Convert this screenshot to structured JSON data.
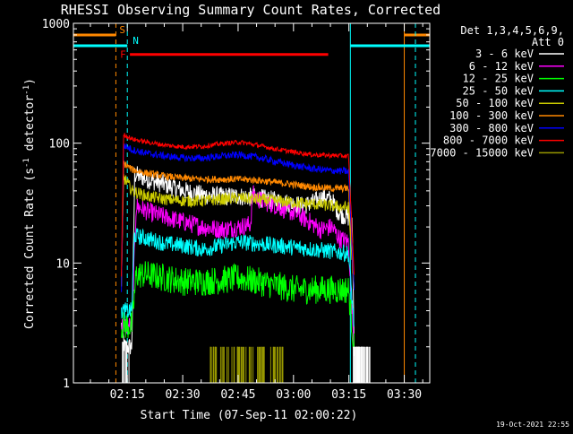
{
  "chart_data": {
    "type": "line",
    "title": "RHESSI Observing Summary Count Rates, Corrected",
    "xlabel": "Start Time (07-Sep-11 02:00:22)",
    "ylabel": "Corrected Count Rate (s⁻¹ detector⁻¹)",
    "ylabel_main": "Corrected Count Rate (s",
    "ylabel_sup1": "-1",
    "ylabel_mid": " detector",
    "ylabel_sup2": "-1",
    "ylabel_end": ")",
    "yscale": "log",
    "ylim": [
      1,
      1000
    ],
    "xlim": [
      0,
      96.5
    ],
    "xunit": "minutes after 02:00:22",
    "x_ticks": [
      {
        "label": "02:15",
        "value": 14.6
      },
      {
        "label": "02:30",
        "value": 29.6
      },
      {
        "label": "02:45",
        "value": 44.6
      },
      {
        "label": "03:00",
        "value": 59.6
      },
      {
        "label": "03:15",
        "value": 74.6
      },
      {
        "label": "03:30",
        "value": 89.6
      }
    ],
    "y_ticks": [
      {
        "label": "1000",
        "value": 1000
      },
      {
        "label": "100",
        "value": 100
      },
      {
        "label": "10",
        "value": 10
      },
      {
        "label": "1",
        "value": 1
      }
    ],
    "legend_header_1": "Det 1,3,4,5,6,9,",
    "legend_header_2": "Att 0",
    "legend_position": "right",
    "data_window": [
      13.0,
      76.0
    ],
    "series": [
      {
        "name": "3 - 6 keV",
        "color": "#ffffff",
        "x": [
          13.0,
          13.8,
          14.3,
          15.8,
          16.6,
          20,
          25,
          30,
          35,
          40,
          45,
          50,
          55,
          60,
          62,
          65,
          68,
          70,
          72,
          74.5,
          75.5,
          76.0
        ],
        "y": [
          3,
          2,
          2,
          2,
          55,
          50,
          45,
          40,
          37,
          36,
          36,
          35,
          33,
          31,
          30,
          32,
          36,
          33,
          26,
          24,
          23,
          2
        ]
      },
      {
        "name": "6 - 12 keV",
        "color": "#ff00ff",
        "x": [
          13.0,
          15.8,
          17,
          20,
          25,
          30,
          35,
          40,
          45,
          48,
          48.5,
          50,
          55,
          60,
          62,
          64,
          66,
          67,
          70,
          72,
          74.5,
          76.0
        ],
        "y": [
          3,
          3,
          30,
          27,
          24,
          22,
          20,
          19,
          20,
          21,
          38,
          34,
          30,
          26,
          24,
          22,
          20,
          19,
          20,
          16,
          15,
          2
        ]
      },
      {
        "name": "12 - 25 keV",
        "color": "#00ff00",
        "x": [
          13.0,
          15.8,
          17,
          20,
          25,
          30,
          35,
          40,
          45,
          50,
          55,
          60,
          65,
          70,
          74.5,
          76.0
        ],
        "y": [
          3,
          3,
          8,
          8,
          7.5,
          7,
          7,
          7.2,
          7.5,
          7,
          6.5,
          6,
          6,
          6,
          6,
          2
        ]
      },
      {
        "name": "25 - 50 keV",
        "color": "#00ffff",
        "x": [
          13.0,
          15.8,
          16.5,
          20,
          25,
          30,
          35,
          40,
          45,
          50,
          55,
          60,
          65,
          70,
          74.5,
          76.0
        ],
        "y": [
          4,
          4,
          17,
          16,
          14.5,
          14,
          13,
          14,
          15,
          14.5,
          14,
          13.5,
          13,
          12.5,
          12,
          3
        ]
      },
      {
        "name": "50 - 100 keV",
        "color": "#cccc00",
        "x": [
          13.0,
          13.6,
          16,
          20,
          25,
          30,
          35,
          40,
          45,
          50,
          55,
          60,
          65,
          70,
          74.5,
          76.0
        ],
        "y": [
          6,
          52,
          40,
          36,
          34,
          33,
          33,
          34,
          35,
          34,
          33,
          32,
          31,
          30,
          29,
          6
        ]
      },
      {
        "name": "100 - 300 keV",
        "color": "#ff8800",
        "x": [
          13.0,
          13.6,
          16,
          20,
          25,
          30,
          35,
          40,
          45,
          50,
          55,
          60,
          65,
          70,
          74.5,
          76.0
        ],
        "y": [
          6,
          68,
          60,
          56,
          53,
          51,
          50,
          50,
          50,
          49,
          47,
          45,
          43,
          42,
          42,
          6
        ]
      },
      {
        "name": "300 - 800 keV",
        "color": "#0000ff",
        "x": [
          13.0,
          13.6,
          16,
          20,
          25,
          30,
          35,
          40,
          45,
          50,
          55,
          60,
          65,
          70,
          74.5,
          76.0
        ],
        "y": [
          6,
          96,
          88,
          82,
          78,
          75,
          75,
          78,
          80,
          76,
          70,
          65,
          61,
          59,
          58,
          6
        ]
      },
      {
        "name": "800 - 7000 keV",
        "color": "#ff0000",
        "x": [
          13.0,
          13.6,
          16,
          20,
          25,
          30,
          35,
          40,
          45,
          50,
          55,
          60,
          65,
          70,
          74.5,
          76.0
        ],
        "y": [
          8,
          118,
          108,
          102,
          96,
          93,
          94,
          99,
          102,
          96,
          89,
          84,
          80,
          79,
          78,
          8
        ]
      },
      {
        "name": "7000 - 15000 keV",
        "color": "#999900",
        "x": [],
        "y": []
      }
    ],
    "flags": {
      "saa_label": "S",
      "night_label": "N",
      "flare_label": "F",
      "saa_color": "#ff8800",
      "night_color": "#00ffff",
      "flare_color": "#ff0000",
      "saa_segments": [
        [
          0,
          11.5
        ],
        [
          89.6,
          96.5
        ]
      ],
      "night_segments": [
        [
          0,
          14.6
        ],
        [
          75.0,
          96.5
        ]
      ],
      "flare_segment": [
        15.3,
        69.0
      ],
      "saa_value": 800,
      "night_value": 650,
      "flare_value": 550
    }
  },
  "footer_timestamp": "19-Oct-2021 22:55"
}
